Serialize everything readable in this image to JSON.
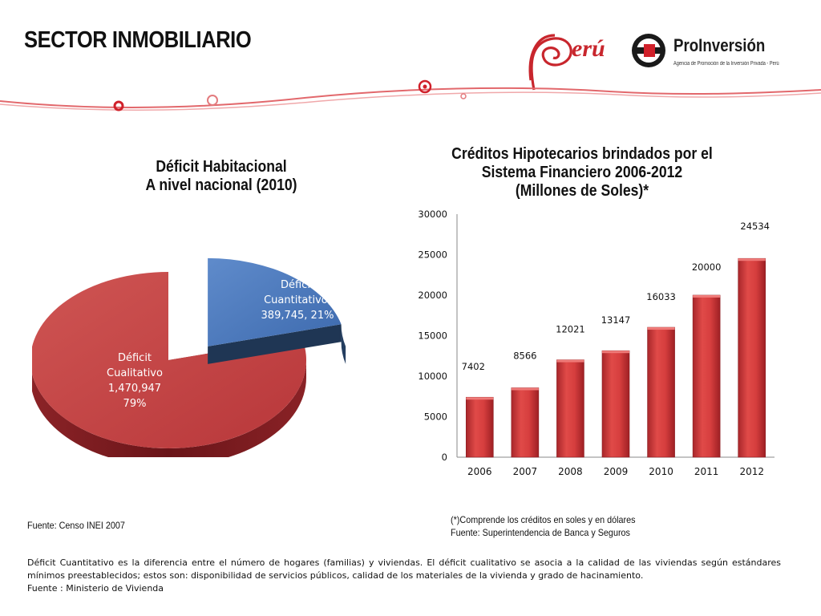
{
  "slide": {
    "title": "SECTOR INMOBILIARIO",
    "logo_peru_text": "erú",
    "logo_proinversion_name": "ProInversión",
    "logo_proinversion_tagline": "Agencia de Promoción de la Inversión Privada - Perú",
    "brand_red": "#c8262d"
  },
  "chart_data": [
    {
      "type": "pie",
      "title_lines": [
        "Déficit Habitacional",
        "A nivel nacional (2010)"
      ],
      "slices": [
        {
          "name": "Déficit Cualitativo",
          "value": 1470947,
          "percent": 79,
          "label_lines": [
            "Déficit",
            "Cualitativo",
            "1,470,947",
            "79%"
          ],
          "color": "#c0403f"
        },
        {
          "name": "Déficit Cuantitativo",
          "value": 389745,
          "percent": 21,
          "label_lines": [
            "Déficit",
            "Cuantitativo,",
            "389,745, 21%"
          ],
          "color": "#4f7bbd"
        }
      ],
      "exploded": true,
      "source": "Fuente: Censo INEI 2007"
    },
    {
      "type": "bar",
      "title_lines": [
        "Créditos Hipotecarios brindados por el",
        "Sistema Financiero 2006-2012",
        "(Millones de Soles)*"
      ],
      "categories": [
        "2006",
        "2007",
        "2008",
        "2009",
        "2010",
        "2011",
        "2012"
      ],
      "values": [
        7402,
        8566,
        12021,
        13147,
        16033,
        20000,
        24534
      ],
      "data_labels": [
        "7402",
        "8566",
        "12021",
        "13147",
        "16033",
        "20000",
        "24534"
      ],
      "ylim": [
        0,
        30000
      ],
      "yticks": [
        "0",
        "5000",
        "10000",
        "15000",
        "20000",
        "25000",
        "30000"
      ],
      "bar_color": "#d23b3b",
      "grid": false,
      "notes": [
        "(*)Comprende los créditos en soles y en dólares",
        "Fuente: Superintendencia de Banca y Seguros"
      ]
    }
  ],
  "footer": {
    "lines": [
      "Déficit Cuantitativo es la diferencia  entre el número de hogares  (familias) y viviendas. El déficit cualitativo se asocia a la calidad de las viviendas  según estándares mínimos preestablecidos; estos son: disponibilidad de servicios públicos,  calidad de los materiales de la vivienda y grado de hacinamiento.",
      "Fuente : Ministerio de Vivienda"
    ]
  }
}
